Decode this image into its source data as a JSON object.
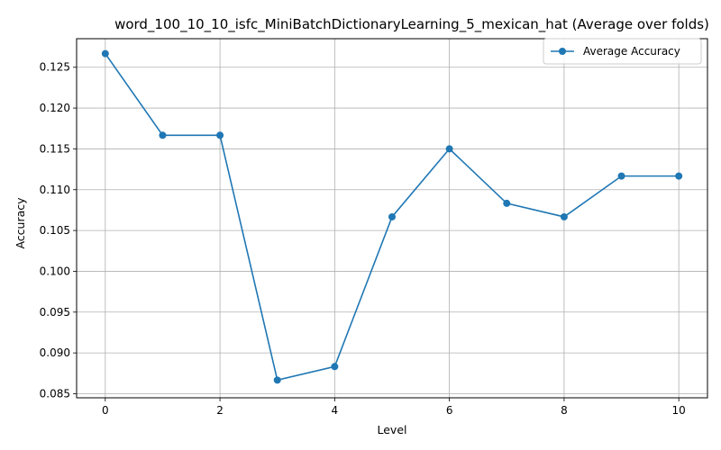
{
  "chart_data": {
    "type": "line",
    "title": "word_100_10_10_isfc_MiniBatchDictionaryLearning_5_mexican_hat (Average over folds)",
    "xlabel": "Level",
    "ylabel": "Accuracy",
    "x": [
      0,
      1,
      2,
      3,
      4,
      5,
      6,
      7,
      8,
      9,
      10
    ],
    "series": [
      {
        "name": "Average Accuracy",
        "color": "#1f77b4",
        "marker": "circle",
        "values": [
          0.12667,
          0.11667,
          0.11667,
          0.08667,
          0.08833,
          0.10667,
          0.115,
          0.10833,
          0.10667,
          0.11167,
          0.11167
        ]
      }
    ],
    "xlim": [
      -0.5,
      10.5
    ],
    "ylim": [
      0.0845,
      0.1285
    ],
    "xticks": [
      "0",
      "2",
      "4",
      "6",
      "8",
      "10"
    ],
    "yticks": [
      "0.085",
      "0.090",
      "0.095",
      "0.100",
      "0.105",
      "0.110",
      "0.115",
      "0.120",
      "0.125"
    ],
    "grid": true,
    "legend_position": "top-right"
  }
}
